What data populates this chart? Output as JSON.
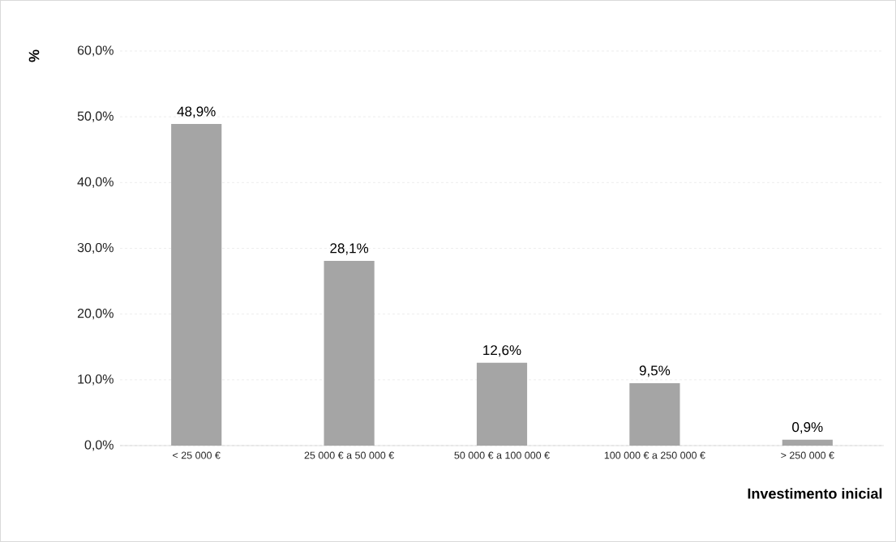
{
  "chart_data": {
    "type": "bar",
    "ylabel": "%",
    "xlabel": "Investimento inicial",
    "categories": [
      "< 25 000 €",
      "25 000 € a 50 000 €",
      "50 000 € a 100 000 €",
      "100 000 € a 250 000 €",
      "> 250 000 €"
    ],
    "values": [
      48.9,
      28.1,
      12.6,
      9.5,
      0.9
    ],
    "value_labels": [
      "48,9%",
      "28,1%",
      "12,6%",
      "9,5%",
      "0,9%"
    ],
    "color": "#a5a5a5",
    "ylim": [
      0,
      60
    ],
    "yticks": [
      {
        "value": 0,
        "label": "0,0%"
      },
      {
        "value": 10,
        "label": "10,0%"
      },
      {
        "value": 20,
        "label": "20,0%"
      },
      {
        "value": 30,
        "label": "30,0%"
      },
      {
        "value": 40,
        "label": "40,0%"
      },
      {
        "value": 50,
        "label": "50,0%"
      },
      {
        "value": 60,
        "label": "60,0%"
      }
    ],
    "grid": "y"
  }
}
